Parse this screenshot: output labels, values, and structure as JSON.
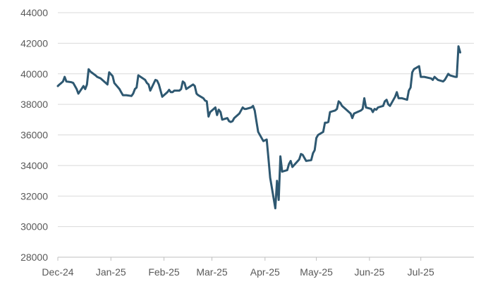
{
  "chart_data": {
    "type": "line",
    "title": "",
    "xlabel": "",
    "ylabel": "",
    "ylim": [
      28000,
      44000
    ],
    "yticks": [
      28000,
      30000,
      32000,
      34000,
      36000,
      38000,
      40000,
      42000,
      44000
    ],
    "ytick_labels": [
      "28000",
      "30000",
      "32000",
      "34000",
      "36000",
      "38000",
      "40000",
      "42000",
      "44000"
    ],
    "xlim": [
      "2024-12-01",
      "2025-08-01"
    ],
    "xticks": [
      "2024-12-01",
      "2025-01-01",
      "2025-02-01",
      "2025-03-01",
      "2025-04-01",
      "2025-05-01",
      "2025-06-01",
      "2025-07-01"
    ],
    "xtick_labels": [
      "Dec-24",
      "Jan-25",
      "Feb-25",
      "Mar-25",
      "Apr-25",
      "May-25",
      "Jun-25",
      "Jul-25"
    ],
    "grid": "horizontal",
    "legend": "none",
    "series": [
      {
        "color": "#2e5871",
        "x": [
          "2024-12-01",
          "2024-12-02",
          "2024-12-03",
          "2024-12-04",
          "2024-12-05",
          "2024-12-06",
          "2024-12-09",
          "2024-12-10",
          "2024-12-11",
          "2024-12-12",
          "2024-12-13",
          "2024-12-16",
          "2024-12-17",
          "2024-12-18",
          "2024-12-19",
          "2024-12-20",
          "2024-12-23",
          "2024-12-24",
          "2024-12-26",
          "2024-12-27",
          "2024-12-30",
          "2024-12-31",
          "2025-01-02",
          "2025-01-03",
          "2025-01-06",
          "2025-01-07",
          "2025-01-08",
          "2025-01-10",
          "2025-01-13",
          "2025-01-14",
          "2025-01-15",
          "2025-01-16",
          "2025-01-17",
          "2025-01-21",
          "2025-01-22",
          "2025-01-23",
          "2025-01-24",
          "2025-01-27",
          "2025-01-28",
          "2025-01-29",
          "2025-01-30",
          "2025-01-31",
          "2025-02-03",
          "2025-02-04",
          "2025-02-05",
          "2025-02-06",
          "2025-02-07",
          "2025-02-10",
          "2025-02-11",
          "2025-02-12",
          "2025-02-13",
          "2025-02-14",
          "2025-02-18",
          "2025-02-19",
          "2025-02-20",
          "2025-02-21",
          "2025-02-24",
          "2025-02-25",
          "2025-02-26",
          "2025-02-27",
          "2025-02-28",
          "2025-03-03",
          "2025-03-04",
          "2025-03-05",
          "2025-03-06",
          "2025-03-07",
          "2025-03-10",
          "2025-03-11",
          "2025-03-12",
          "2025-03-13",
          "2025-03-14",
          "2025-03-17",
          "2025-03-18",
          "2025-03-19",
          "2025-03-20",
          "2025-03-21",
          "2025-03-24",
          "2025-03-25",
          "2025-03-26",
          "2025-03-27",
          "2025-03-28",
          "2025-03-31",
          "2025-04-01",
          "2025-04-02",
          "2025-04-03",
          "2025-04-04",
          "2025-04-07",
          "2025-04-08",
          "2025-04-09",
          "2025-04-10",
          "2025-04-11",
          "2025-04-14",
          "2025-04-15",
          "2025-04-16",
          "2025-04-17",
          "2025-04-21",
          "2025-04-22",
          "2025-04-23",
          "2025-04-24",
          "2025-04-25",
          "2025-04-28",
          "2025-04-29",
          "2025-04-30",
          "2025-05-01",
          "2025-05-02",
          "2025-05-05",
          "2025-05-06",
          "2025-05-07",
          "2025-05-08",
          "2025-05-09",
          "2025-05-12",
          "2025-05-13",
          "2025-05-14",
          "2025-05-15",
          "2025-05-16",
          "2025-05-19",
          "2025-05-20",
          "2025-05-21",
          "2025-05-22",
          "2025-05-23",
          "2025-05-27",
          "2025-05-28",
          "2025-05-29",
          "2025-05-30",
          "2025-06-02",
          "2025-06-03",
          "2025-06-04",
          "2025-06-05",
          "2025-06-06",
          "2025-06-09",
          "2025-06-10",
          "2025-06-11",
          "2025-06-12",
          "2025-06-13",
          "2025-06-16",
          "2025-06-17",
          "2025-06-18",
          "2025-06-20",
          "2025-06-23",
          "2025-06-24",
          "2025-06-25",
          "2025-06-26",
          "2025-06-27",
          "2025-06-30",
          "2025-07-01",
          "2025-07-02",
          "2025-07-03",
          "2025-07-07",
          "2025-07-08",
          "2025-07-09",
          "2025-07-10",
          "2025-07-11",
          "2025-07-14",
          "2025-07-15",
          "2025-07-16",
          "2025-07-17",
          "2025-07-18",
          "2025-07-21",
          "2025-07-22",
          "2025-07-23",
          "2025-07-24"
        ],
        "y": [
          39200,
          39300,
          39400,
          39500,
          39800,
          39500,
          39450,
          39400,
          39200,
          39000,
          38700,
          39200,
          39000,
          39300,
          40300,
          40150,
          39900,
          39800,
          39700,
          39600,
          39300,
          40100,
          39850,
          39400,
          39000,
          38800,
          38600,
          38600,
          38550,
          38700,
          39000,
          39100,
          39900,
          39600,
          39400,
          39300,
          38900,
          39600,
          39550,
          39300,
          38900,
          38500,
          38800,
          38950,
          38800,
          38800,
          38900,
          38900,
          39000,
          39500,
          39400,
          39000,
          39300,
          39200,
          38700,
          38600,
          38400,
          38250,
          38200,
          37200,
          37500,
          37800,
          37300,
          37650,
          37500,
          37000,
          37100,
          36900,
          36850,
          36900,
          37100,
          37400,
          37600,
          37800,
          37700,
          37700,
          37800,
          37900,
          37600,
          36900,
          36200,
          35600,
          35650,
          35700,
          34500,
          33200,
          31200,
          33000,
          31750,
          34600,
          33600,
          33700,
          34100,
          34300,
          33900,
          34400,
          34750,
          34700,
          34500,
          34300,
          34350,
          34800,
          35000,
          35800,
          36000,
          36200,
          36800,
          36800,
          36850,
          37500,
          37600,
          37700,
          38200,
          38100,
          37900,
          37600,
          37500,
          37400,
          37100,
          37400,
          37600,
          37700,
          38400,
          37800,
          37700,
          37500,
          37700,
          37650,
          37800,
          37900,
          38200,
          38300,
          38000,
          37900,
          38500,
          38800,
          38400,
          38400,
          38300,
          38900,
          39100,
          40100,
          40300,
          40500,
          39800,
          39800,
          39800,
          39700,
          39600,
          39800,
          39700,
          39600,
          39500,
          39600,
          39800,
          40000,
          39900,
          39800,
          39800,
          41800,
          41400
        ]
      }
    ]
  }
}
